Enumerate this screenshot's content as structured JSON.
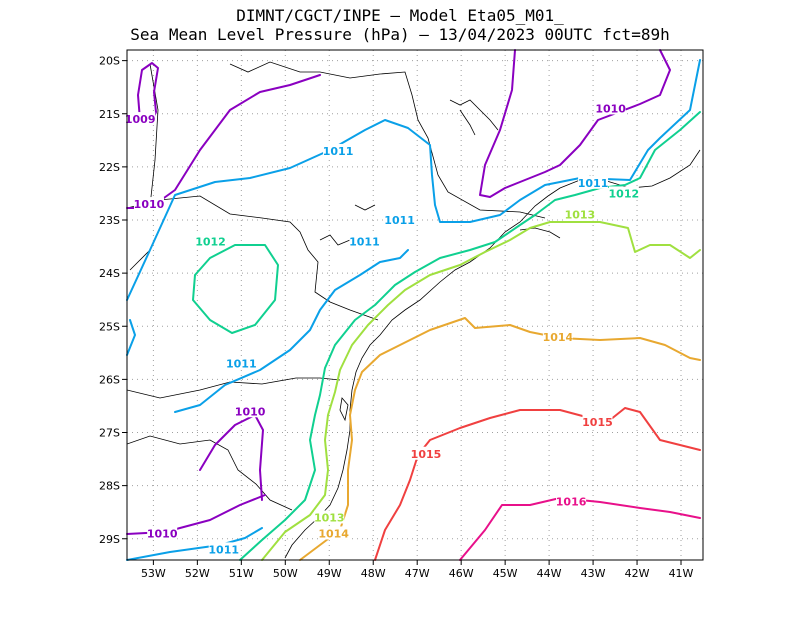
{
  "title": {
    "line1": "DIMNT/CGCT/INPE –  Model Eta05_M01_",
    "line2": "Sea Mean Level Pressure (hPa) – 13/04/2023 00UTC fct=89h"
  },
  "axes": {
    "x_ticks": [
      "53W",
      "52W",
      "51W",
      "50W",
      "49W",
      "48W",
      "47W",
      "46W",
      "45W",
      "44W",
      "43W",
      "42W",
      "41W"
    ],
    "y_ticks": [
      "20S",
      "21S",
      "22S",
      "23S",
      "24S",
      "25S",
      "26S",
      "27S",
      "28S",
      "29S"
    ]
  },
  "colors": {
    "1009": "#8a00c0",
    "1010": "#8a00c0",
    "1011": "#0aa0e8",
    "1012": "#10d090",
    "1013": "#a0e040",
    "1014": "#e8a830",
    "1015": "#f04040",
    "1016": "#e8108a"
  },
  "chart_data": {
    "type": "contour_map",
    "variable": "Sea Mean Level Pressure (hPa)",
    "lon_range": [
      -53.6,
      -40.5
    ],
    "lat_range": [
      -29.4,
      -19.8
    ],
    "contour_labels": [
      {
        "text": "1009",
        "lon": -53.3,
        "lat": -21.1
      },
      {
        "text": "1010",
        "lon": -53.1,
        "lat": -22.7
      },
      {
        "text": "1010",
        "lon": -42.6,
        "lat": -20.9
      },
      {
        "text": "1010",
        "lon": -50.8,
        "lat": -26.6
      },
      {
        "text": "1010",
        "lon": -52.8,
        "lat": -28.9
      },
      {
        "text": "1011",
        "lon": -48.8,
        "lat": -21.7
      },
      {
        "text": "1011",
        "lon": -47.4,
        "lat": -23.0
      },
      {
        "text": "1011",
        "lon": -48.2,
        "lat": -23.4
      },
      {
        "text": "1011",
        "lon": -51.0,
        "lat": -25.7
      },
      {
        "text": "1011",
        "lon": -51.4,
        "lat": -29.2
      },
      {
        "text": "1011",
        "lon": -43.0,
        "lat": -22.3
      },
      {
        "text": "1012",
        "lon": -51.7,
        "lat": -23.4
      },
      {
        "text": "1012",
        "lon": -42.3,
        "lat": -22.5
      },
      {
        "text": "1013",
        "lon": -49.0,
        "lat": -28.6
      },
      {
        "text": "1013",
        "lon": -43.3,
        "lat": -22.9
      },
      {
        "text": "1014",
        "lon": -48.9,
        "lat": -28.9
      },
      {
        "text": "1014",
        "lon": -43.8,
        "lat": -25.2
      },
      {
        "text": "1015",
        "lon": -46.8,
        "lat": -27.4
      },
      {
        "text": "1015",
        "lon": -42.9,
        "lat": -26.8
      },
      {
        "text": "1016",
        "lon": -43.5,
        "lat": -28.3
      }
    ]
  }
}
